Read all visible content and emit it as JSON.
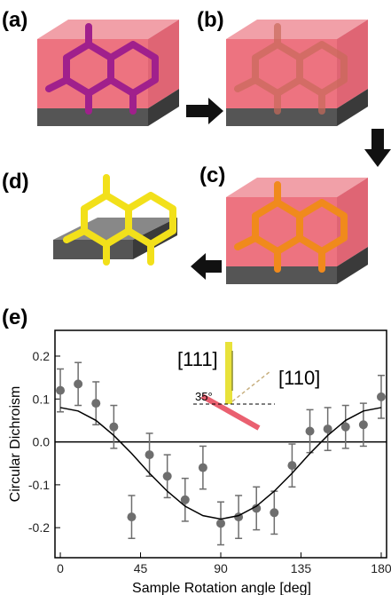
{
  "panels": {
    "a": "(a)",
    "b": "(b)",
    "c": "(c)",
    "d": "(d)",
    "e": "(e)"
  },
  "chart_data": {
    "type": "scatter",
    "x_label": "Sample Rotation angle [deg]",
    "y_label": "Circular Dichroism",
    "annotations": [
      "[111]",
      "[110]",
      "35°"
    ],
    "xlim": [
      -3,
      183
    ],
    "ylim": [
      -0.27,
      0.26
    ],
    "xticks": [
      0,
      45,
      90,
      135,
      180
    ],
    "yticks": [
      -0.2,
      -0.1,
      {
        "value": 0,
        "label": "0.0"
      },
      0.1,
      0.2
    ],
    "series": [
      {
        "color": "#6e6e6e",
        "x": [
          0,
          10,
          20,
          30,
          40,
          50,
          60,
          70,
          80,
          90,
          100,
          110,
          120,
          130,
          140,
          150,
          160,
          170,
          180
        ],
        "values": [
          0.12,
          0.135,
          0.09,
          0.035,
          -0.175,
          -0.03,
          -0.08,
          -0.135,
          -0.06,
          -0.19,
          -0.175,
          -0.155,
          -0.165,
          -0.055,
          0.025,
          0.03,
          0.035,
          0.04,
          0.105
        ],
        "errors": [
          0.05,
          0.05,
          0.05,
          0.05,
          0.05,
          0.05,
          0.05,
          0.05,
          0.05,
          0.05,
          0.05,
          0.05,
          0.05,
          0.05,
          0.05,
          0.05,
          0.05,
          0.05,
          0.05
        ]
      },
      {
        "type": "line",
        "color": "#000000",
        "x": [
          0,
          10,
          20,
          30,
          40,
          50,
          60,
          70,
          80,
          90,
          100,
          110,
          120,
          130,
          140,
          150,
          160,
          170,
          180
        ],
        "values": [
          0.08,
          0.072,
          0.05,
          0.015,
          -0.027,
          -0.073,
          -0.115,
          -0.15,
          -0.172,
          -0.18,
          -0.172,
          -0.15,
          -0.115,
          -0.073,
          -0.027,
          0.015,
          0.05,
          0.072,
          0.08
        ]
      }
    ]
  }
}
